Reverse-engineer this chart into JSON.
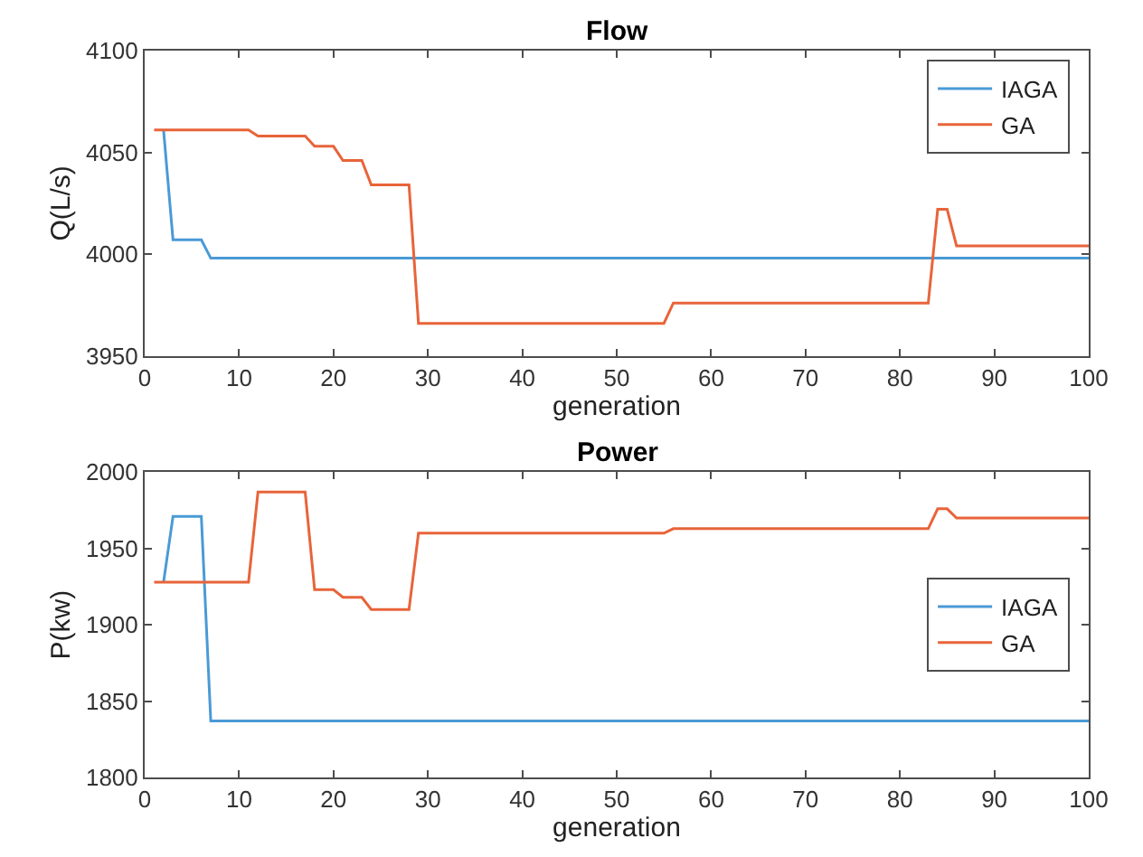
{
  "chart_data": [
    {
      "type": "line",
      "title": "Flow",
      "xlabel": "generation",
      "ylabel": "Q(L/s)",
      "xlim": [
        0,
        100
      ],
      "xticks": [
        0,
        10,
        20,
        30,
        40,
        50,
        60,
        70,
        80,
        90,
        100
      ],
      "ylim": [
        3950,
        4100
      ],
      "yticks": [
        3950,
        4000,
        4050,
        4100
      ],
      "legend": "top right",
      "marker": "none",
      "line_style": "solid",
      "series": [
        {
          "name": "IAGA",
          "color": "#4a9ad6",
          "x": [
            2,
            3,
            6,
            7,
            100
          ],
          "values": [
            4061,
            4007,
            4007,
            3998,
            3998
          ]
        },
        {
          "name": "GA",
          "color": "#e8643a",
          "x": [
            1,
            11,
            12,
            17,
            18,
            20,
            21,
            23,
            24,
            28,
            29,
            55,
            56,
            83,
            84,
            85,
            86,
            100
          ],
          "values": [
            4061,
            4061,
            4058,
            4058,
            4053,
            4053,
            4046,
            4046,
            4034,
            4034,
            3966,
            3966,
            3976,
            3976,
            4022,
            4022,
            4004,
            4004
          ]
        }
      ]
    },
    {
      "type": "line",
      "title": "Power",
      "xlabel": "generation",
      "ylabel": "P(kw)",
      "xlim": [
        0,
        100
      ],
      "xticks": [
        0,
        10,
        20,
        30,
        40,
        50,
        60,
        70,
        80,
        90,
        100
      ],
      "ylim": [
        1800,
        2000
      ],
      "yticks": [
        1800,
        1850,
        1900,
        1950,
        2000
      ],
      "legend": "right",
      "marker": "none",
      "line_style": "solid",
      "series": [
        {
          "name": "IAGA",
          "color": "#4a9ad6",
          "x": [
            2,
            3,
            6,
            7,
            100
          ],
          "values": [
            1928,
            1971,
            1971,
            1837,
            1837
          ]
        },
        {
          "name": "GA",
          "color": "#e8643a",
          "x": [
            1,
            11,
            12,
            17,
            18,
            20,
            21,
            23,
            24,
            28,
            29,
            55,
            56,
            83,
            84,
            85,
            86,
            100
          ],
          "values": [
            1928,
            1928,
            1987,
            1987,
            1923,
            1923,
            1918,
            1918,
            1910,
            1910,
            1960,
            1960,
            1963,
            1963,
            1976,
            1976,
            1970,
            1970
          ]
        }
      ]
    }
  ]
}
